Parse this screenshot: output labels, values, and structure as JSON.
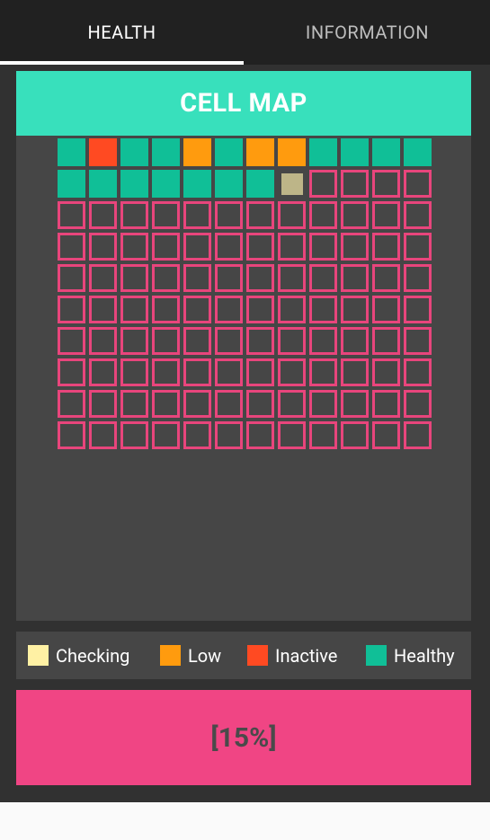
{
  "tabs": [
    {
      "label": "HEALTH",
      "active": true
    },
    {
      "label": "INFORMATION",
      "active": false
    }
  ],
  "cell_map": {
    "title": "CELL MAP",
    "columns": 12,
    "rows": 10,
    "cells": [
      "healthy",
      "inactive",
      "healthy",
      "healthy",
      "low",
      "healthy",
      "low",
      "low",
      "healthy",
      "healthy",
      "healthy",
      "healthy",
      "healthy",
      "healthy",
      "healthy",
      "healthy",
      "healthy",
      "healthy",
      "healthy",
      "checking",
      "empty",
      "empty",
      "empty",
      "empty",
      "empty",
      "empty",
      "empty",
      "empty",
      "empty",
      "empty",
      "empty",
      "empty",
      "empty",
      "empty",
      "empty",
      "empty",
      "empty",
      "empty",
      "empty",
      "empty",
      "empty",
      "empty",
      "empty",
      "empty",
      "empty",
      "empty",
      "empty",
      "empty",
      "empty",
      "empty",
      "empty",
      "empty",
      "empty",
      "empty",
      "empty",
      "empty",
      "empty",
      "empty",
      "empty",
      "empty",
      "empty",
      "empty",
      "empty",
      "empty",
      "empty",
      "empty",
      "empty",
      "empty",
      "empty",
      "empty",
      "empty",
      "empty",
      "empty",
      "empty",
      "empty",
      "empty",
      "empty",
      "empty",
      "empty",
      "empty",
      "empty",
      "empty",
      "empty",
      "empty",
      "empty",
      "empty",
      "empty",
      "empty",
      "empty",
      "empty",
      "empty",
      "empty",
      "empty",
      "empty",
      "empty",
      "empty",
      "empty",
      "empty",
      "empty",
      "empty",
      "empty",
      "empty",
      "empty",
      "empty",
      "empty",
      "empty",
      "empty",
      "empty",
      "empty",
      "empty",
      "empty",
      "empty",
      "empty",
      "empty",
      "empty",
      "empty",
      "empty",
      "empty",
      "empty",
      "empty"
    ]
  },
  "colors": {
    "healthy": "#10bf97",
    "inactive": "#ff4a22",
    "low": "#ff9b0e",
    "checking_cell": "#bdb588",
    "checking_swatch": "#fff1a4",
    "empty_border": "#e8457c",
    "accent": "#38e0bc",
    "progress_bg": "#f04584"
  },
  "legend": [
    {
      "label": "Checking",
      "color": "#fff1a4"
    },
    {
      "label": "Low",
      "color": "#ff9b0e"
    },
    {
      "label": "Inactive",
      "color": "#ff4a22"
    },
    {
      "label": "Healthy",
      "color": "#10bf97"
    }
  ],
  "progress": {
    "label": "[15%]"
  }
}
